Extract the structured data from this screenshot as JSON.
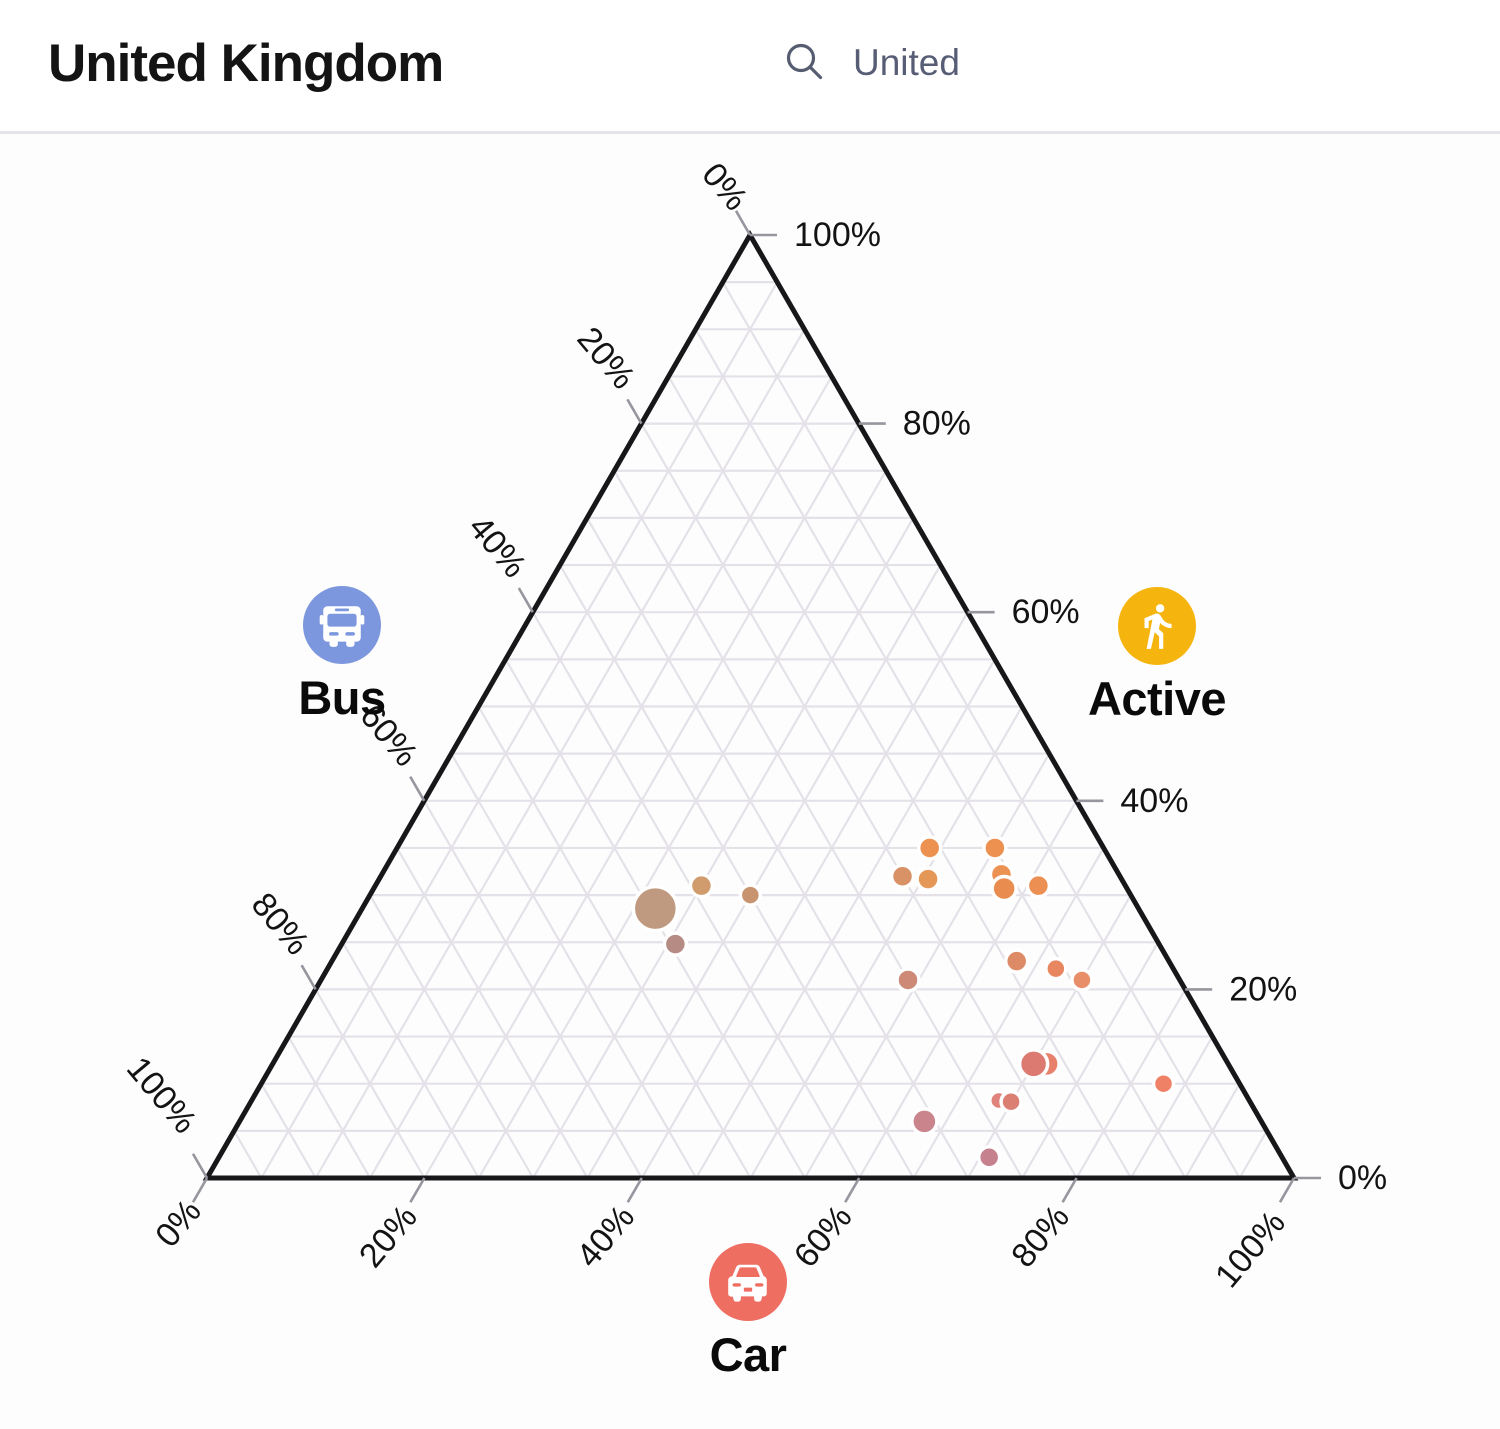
{
  "header": {
    "title": "United Kingdom",
    "search": {
      "icon": "search-icon",
      "value": "United"
    }
  },
  "chart_data": {
    "type": "scatter-ternary",
    "title": "",
    "grid": {
      "on": true,
      "step_percent": 5,
      "color": "#e4e2e8",
      "tick_step_percent": 20
    },
    "triangle": {
      "edge_color": "#17171a",
      "tick_color": "#97969e",
      "label_color": "#131313"
    },
    "axes": {
      "left": {
        "label": "Bus",
        "icon": "bus-icon",
        "color": "#7d97de",
        "ticks": [
          "0%",
          "20%",
          "40%",
          "60%",
          "80%",
          "100%"
        ]
      },
      "right": {
        "label": "Active",
        "icon": "walking-person-icon",
        "color": "#f6b40e",
        "ticks": [
          "100%",
          "80%",
          "60%",
          "40%",
          "20%",
          "0%"
        ]
      },
      "bottom": {
        "label": "Car",
        "icon": "car-icon",
        "color": "#ee6e62",
        "ticks": [
          "0%",
          "20%",
          "40%",
          "60%",
          "80%",
          "100%"
        ]
      }
    },
    "points": [
      {
        "bus": 39.0,
        "car": 30.0,
        "active": 31.0,
        "r": 11,
        "color": "#d09b6d"
      },
      {
        "bus": 35.0,
        "car": 35.0,
        "active": 30.0,
        "r": 10,
        "color": "#c8946f"
      },
      {
        "bus": 44.5,
        "car": 30.7,
        "active": 24.8,
        "r": 11,
        "color": "#b68b84"
      },
      {
        "bus": 44.5,
        "car": 27.0,
        "active": 28.6,
        "r": 22,
        "color": "#c09a80"
      },
      {
        "bus": 16.0,
        "car": 49.0,
        "active": 35.0,
        "r": 11,
        "color": "#ec9150"
      },
      {
        "bus": 10.0,
        "car": 55.0,
        "active": 35.0,
        "r": 11,
        "color": "#ec9150"
      },
      {
        "bus": 20.0,
        "car": 48.0,
        "active": 32.0,
        "r": 11,
        "color": "#d99166"
      },
      {
        "bus": 17.8,
        "car": 50.5,
        "active": 31.7,
        "r": 11,
        "color": "#e59758"
      },
      {
        "bus": 10.8,
        "car": 57.0,
        "active": 32.2,
        "r": 11,
        "color": "#eb9252"
      },
      {
        "bus": 11.3,
        "car": 58.0,
        "active": 30.7,
        "r": 12,
        "color": "#e98c50"
      },
      {
        "bus": 8.0,
        "car": 61.0,
        "active": 31.0,
        "r": 11,
        "color": "#ec8f52"
      },
      {
        "bus": 25.0,
        "car": 54.0,
        "active": 21.0,
        "r": 11,
        "color": "#cd8a77"
      },
      {
        "bus": 14.0,
        "car": 63.0,
        "active": 23.0,
        "r": 11,
        "color": "#dd8a66"
      },
      {
        "bus": 10.8,
        "car": 67.0,
        "active": 22.2,
        "r": 10,
        "color": "#e8875f"
      },
      {
        "bus": 9.0,
        "car": 70.0,
        "active": 21.0,
        "r": 10,
        "color": "#e88f6a"
      },
      {
        "bus": 7.0,
        "car": 83.0,
        "active": 10.0,
        "r": 10,
        "color": "#ee8166"
      },
      {
        "bus": 23.0,
        "car": 68.6,
        "active": 8.2,
        "r": 9,
        "color": "#e0837a"
      },
      {
        "bus": 22.0,
        "car": 70.0,
        "active": 8.1,
        "r": 10,
        "color": "#dc7f73"
      },
      {
        "bus": 27.0,
        "car": 71.0,
        "active": 2.2,
        "r": 10.5,
        "color": "#c6818e"
      },
      {
        "bus": 31.0,
        "car": 63.0,
        "active": 6.0,
        "r": 12.5,
        "color": "#c9848c"
      },
      {
        "bus": 16.7,
        "car": 71.2,
        "active": 12.1,
        "r": 12.5,
        "color": "#e8816c"
      },
      {
        "bus": 17.9,
        "car": 70.0,
        "active": 12.1,
        "r": 14,
        "color": "#dc7a72"
      }
    ]
  }
}
